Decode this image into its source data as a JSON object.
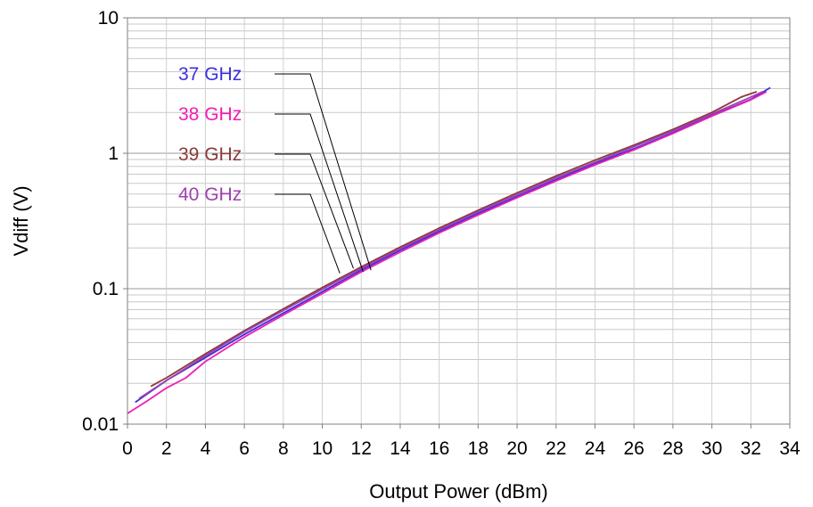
{
  "chart_data": {
    "type": "line",
    "xlabel": "Output Power (dBm)",
    "ylabel": "Vdiff (V)",
    "xlim": [
      0,
      34
    ],
    "ylim": [
      0.01,
      10
    ],
    "yscale": "log",
    "x_ticks": [
      "0",
      "2",
      "4",
      "6",
      "8",
      "10",
      "12",
      "14",
      "16",
      "18",
      "20",
      "22",
      "24",
      "26",
      "28",
      "30",
      "32",
      "34"
    ],
    "y_ticks": [
      "0.01",
      "0.1",
      "1",
      "10"
    ],
    "grid": true,
    "legend_position": "top-left",
    "series": [
      {
        "name": "37 GHz",
        "color": "#3a2fe0",
        "points": [
          [
            0.4,
            0.0145
          ],
          [
            2,
            0.021
          ],
          [
            4,
            0.031
          ],
          [
            6,
            0.046
          ],
          [
            8,
            0.066
          ],
          [
            10,
            0.095
          ],
          [
            12,
            0.137
          ],
          [
            14,
            0.192
          ],
          [
            16,
            0.265
          ],
          [
            18,
            0.36
          ],
          [
            20,
            0.48
          ],
          [
            22,
            0.64
          ],
          [
            24,
            0.84
          ],
          [
            26,
            1.08
          ],
          [
            28,
            1.42
          ],
          [
            30,
            1.9
          ],
          [
            32,
            2.5
          ],
          [
            33,
            3.05
          ]
        ]
      },
      {
        "name": "38 GHz",
        "color": "#f01db5",
        "points": [
          [
            0,
            0.012
          ],
          [
            1,
            0.0148
          ],
          [
            2,
            0.0185
          ],
          [
            3,
            0.022
          ],
          [
            4,
            0.029
          ],
          [
            6,
            0.044
          ],
          [
            8,
            0.064
          ],
          [
            10,
            0.092
          ],
          [
            12,
            0.133
          ],
          [
            14,
            0.186
          ],
          [
            16,
            0.258
          ],
          [
            18,
            0.35
          ],
          [
            20,
            0.47
          ],
          [
            22,
            0.625
          ],
          [
            24,
            0.82
          ],
          [
            26,
            1.06
          ],
          [
            28,
            1.4
          ],
          [
            30,
            1.88
          ],
          [
            32,
            2.48
          ],
          [
            32.8,
            2.85
          ]
        ]
      },
      {
        "name": "39 GHz",
        "color": "#8b3a3a",
        "points": [
          [
            1.2,
            0.019
          ],
          [
            2,
            0.022
          ],
          [
            4,
            0.033
          ],
          [
            6,
            0.049
          ],
          [
            8,
            0.071
          ],
          [
            10,
            0.102
          ],
          [
            12,
            0.145
          ],
          [
            14,
            0.203
          ],
          [
            16,
            0.28
          ],
          [
            18,
            0.38
          ],
          [
            20,
            0.51
          ],
          [
            22,
            0.68
          ],
          [
            24,
            0.89
          ],
          [
            26,
            1.15
          ],
          [
            28,
            1.5
          ],
          [
            30,
            2.0
          ],
          [
            31.5,
            2.6
          ],
          [
            32.3,
            2.85
          ]
        ]
      },
      {
        "name": "40 GHz",
        "color": "#a040b0",
        "points": [
          [
            0.6,
            0.0155
          ],
          [
            2,
            0.021
          ],
          [
            4,
            0.032
          ],
          [
            6,
            0.048
          ],
          [
            8,
            0.069
          ],
          [
            10,
            0.099
          ],
          [
            12,
            0.141
          ],
          [
            14,
            0.197
          ],
          [
            16,
            0.272
          ],
          [
            18,
            0.37
          ],
          [
            20,
            0.495
          ],
          [
            22,
            0.66
          ],
          [
            24,
            0.86
          ],
          [
            26,
            1.12
          ],
          [
            28,
            1.46
          ],
          [
            30,
            1.95
          ],
          [
            32,
            2.6
          ],
          [
            32.6,
            2.85
          ]
        ]
      }
    ],
    "annotations": [
      {
        "label_series": 0,
        "target": [
          12.5,
          0.137
        ]
      },
      {
        "label_series": 1,
        "target": [
          12.1,
          0.133
        ]
      },
      {
        "label_series": 2,
        "target": [
          11.6,
          0.141
        ]
      },
      {
        "label_series": 3,
        "target": [
          10.9,
          0.13
        ]
      }
    ]
  }
}
